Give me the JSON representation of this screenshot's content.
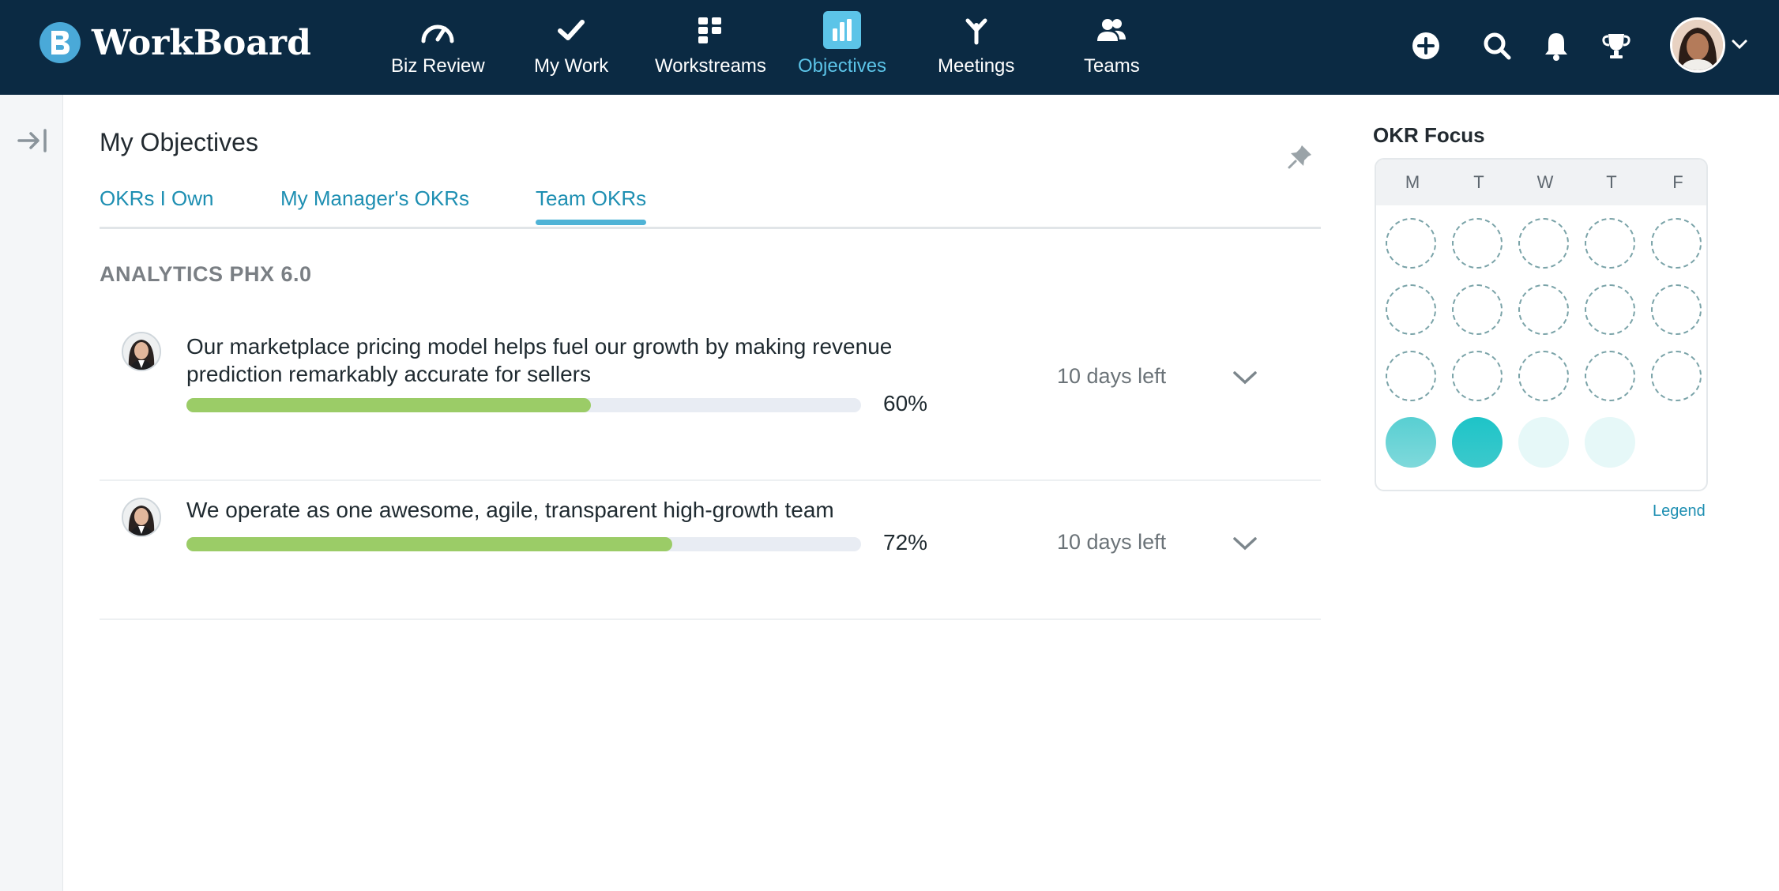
{
  "app": {
    "name": "WorkBoard",
    "logo_icon": "workboard-logo-icon"
  },
  "nav": {
    "items": [
      {
        "label": "Biz Review",
        "icon": "gauge-icon"
      },
      {
        "label": "My Work",
        "icon": "checkmark-icon"
      },
      {
        "label": "Workstreams",
        "icon": "workstreams-grid-icon"
      },
      {
        "label": "Objectives",
        "icon": "bar-chart-icon",
        "active": true
      },
      {
        "label": "Meetings",
        "icon": "meetings-fork-icon"
      },
      {
        "label": "Teams",
        "icon": "people-icon"
      }
    ],
    "right_icons": [
      "add-circle-icon",
      "search-icon",
      "bell-icon",
      "trophy-icon"
    ]
  },
  "main": {
    "title": "My Objectives",
    "tabs": [
      {
        "label": "OKRs I Own"
      },
      {
        "label": "My Manager's OKRs"
      },
      {
        "label": "Team OKRs",
        "active": true
      }
    ],
    "section_title": "ANALYTICS PHX 6.0",
    "objectives": [
      {
        "text": "Our marketplace pricing model helps fuel our growth by making revenue prediction remarkably accurate for sellers",
        "progress": 0.6,
        "progress_label": "60%",
        "days_left": "10 days left"
      },
      {
        "text": "We operate as one awesome, agile, transparent high-growth team",
        "progress": 0.72,
        "progress_label": "72%",
        "days_left": "10 days left"
      }
    ]
  },
  "okr_focus": {
    "title": "OKR Focus",
    "days": [
      "M",
      "T",
      "W",
      "T",
      "F"
    ],
    "grid": [
      [
        "empty",
        "empty",
        "empty",
        "empty",
        "empty"
      ],
      [
        "empty",
        "empty",
        "empty",
        "empty",
        "empty"
      ],
      [
        "empty",
        "empty",
        "empty",
        "empty",
        "empty"
      ],
      [
        "medium",
        "strong",
        "light",
        "light",
        "none"
      ]
    ],
    "legend_label": "Legend"
  },
  "colors": {
    "topbar": "#0b2a43",
    "accent": "#5cc4e8",
    "link": "#1e8fb2",
    "progress": "#9bcc67",
    "focus_strong": "#1ec4c8",
    "focus_medium": "#58cfd2",
    "focus_light": "#e6f8f8"
  }
}
